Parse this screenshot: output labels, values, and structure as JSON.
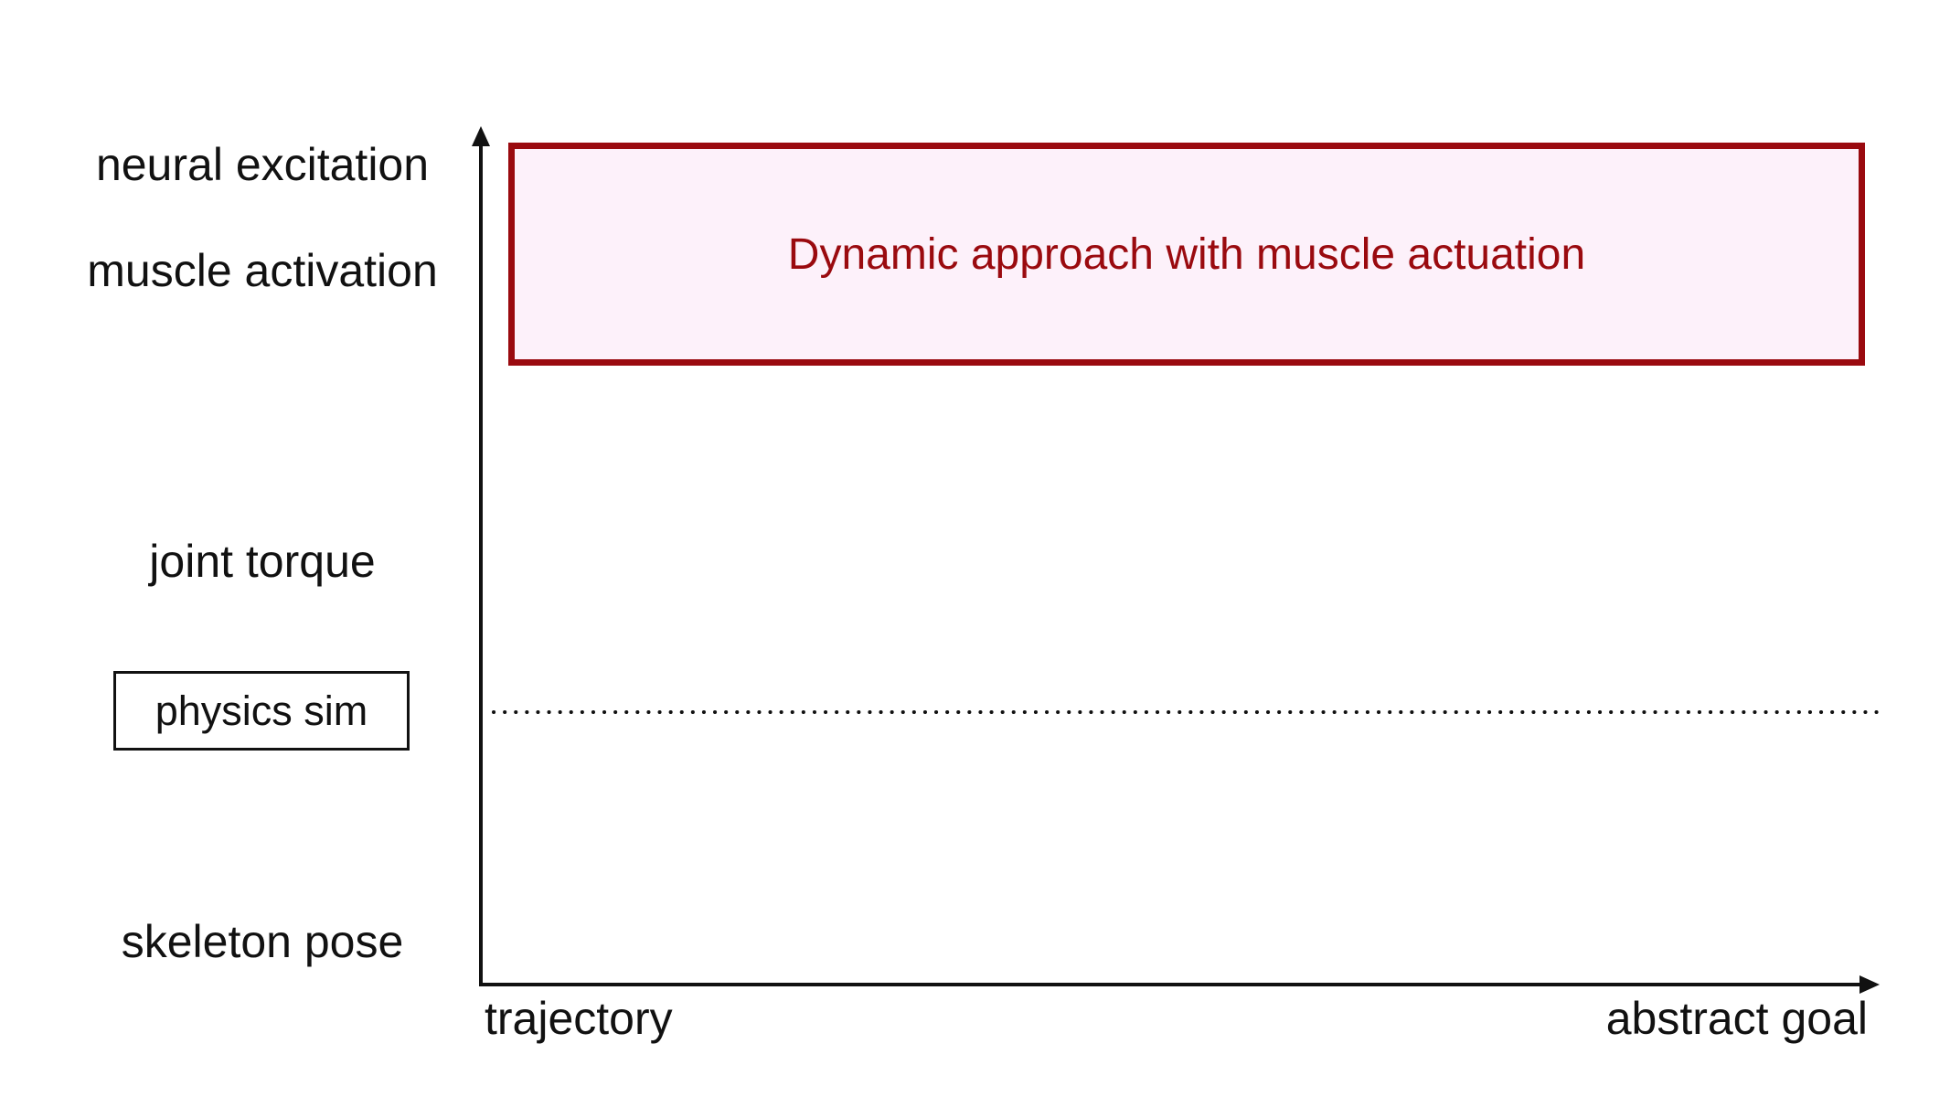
{
  "y_axis": {
    "levels": [
      {
        "id": "neural-excitation",
        "label": "neural excitation"
      },
      {
        "id": "muscle-activation",
        "label": "muscle activation"
      },
      {
        "id": "joint-torque",
        "label": "joint torque"
      },
      {
        "id": "physics-sim",
        "label": "physics sim"
      },
      {
        "id": "skeleton-pose",
        "label": "skeleton pose"
      }
    ]
  },
  "x_axis": {
    "left_label": "trajectory",
    "right_label": "abstract goal"
  },
  "region": {
    "label": "Dynamic approach with muscle actuation",
    "border_color": "#9a0a0f",
    "fill_color": "#fdf1fa"
  },
  "colors": {
    "axis": "#111111",
    "text": "#111111"
  }
}
